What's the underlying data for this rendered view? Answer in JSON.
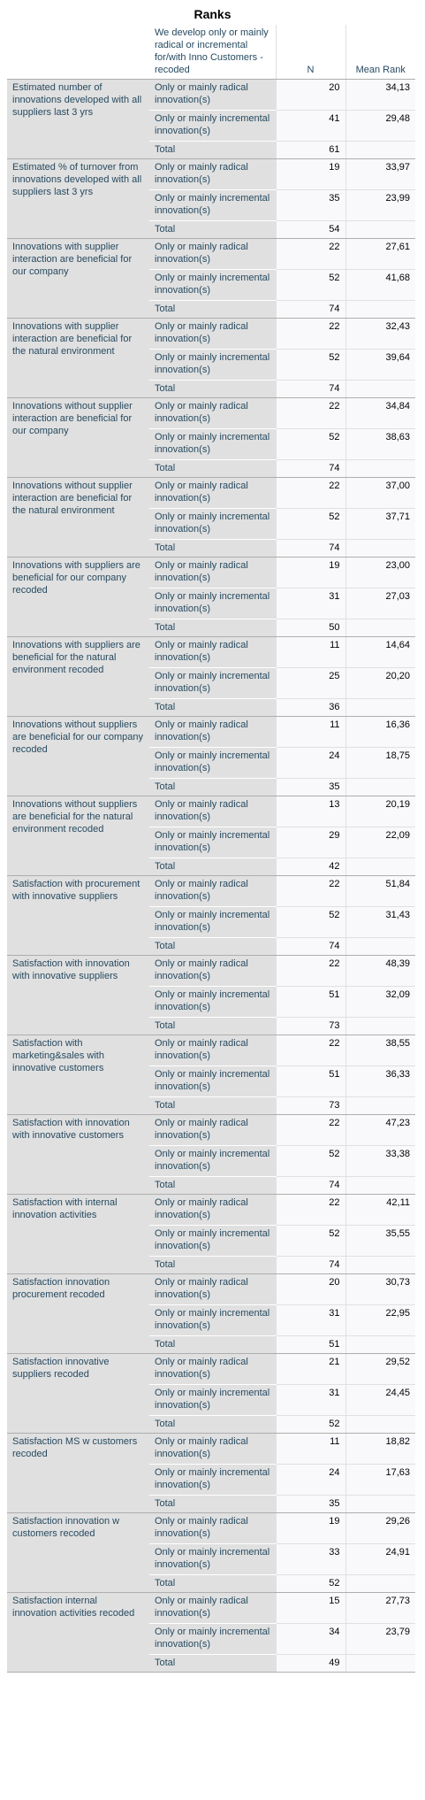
{
  "title": "Ranks",
  "header": {
    "group_var": "We develop only or mainly radical or incremental for/with Inno Customers - recoded",
    "n": "N",
    "mean_rank": "Mean Rank"
  },
  "group_labels": {
    "radical": "Only or mainly radical innovation(s)",
    "incremental": "Only or mainly incremental innovation(s)",
    "total": "Total"
  },
  "rows": [
    {
      "variable": "Estimated number of innovations developed with all suppliers last 3 yrs",
      "radical_n": "20",
      "radical_mr": "34,13",
      "incremental_n": "41",
      "incremental_mr": "29,48",
      "total_n": "61"
    },
    {
      "variable": "Estimated % of turnover from innovations developed with all suppliers last 3 yrs",
      "radical_n": "19",
      "radical_mr": "33,97",
      "incremental_n": "35",
      "incremental_mr": "23,99",
      "total_n": "54"
    },
    {
      "variable": "Innovations with supplier interaction are beneficial for our company",
      "radical_n": "22",
      "radical_mr": "27,61",
      "incremental_n": "52",
      "incremental_mr": "41,68",
      "total_n": "74"
    },
    {
      "variable": "Innovations with supplier interaction are beneficial for the natural environment",
      "radical_n": "22",
      "radical_mr": "32,43",
      "incremental_n": "52",
      "incremental_mr": "39,64",
      "total_n": "74"
    },
    {
      "variable": "Innovations without supplier interaction are beneficial for our company",
      "radical_n": "22",
      "radical_mr": "34,84",
      "incremental_n": "52",
      "incremental_mr": "38,63",
      "total_n": "74"
    },
    {
      "variable": "Innovations without supplier interaction are beneficial for the natural environment",
      "radical_n": "22",
      "radical_mr": "37,00",
      "incremental_n": "52",
      "incremental_mr": "37,71",
      "total_n": "74"
    },
    {
      "variable": "Innovations with suppliers are beneficial for our company recoded",
      "radical_n": "19",
      "radical_mr": "23,00",
      "incremental_n": "31",
      "incremental_mr": "27,03",
      "total_n": "50"
    },
    {
      "variable": "Innovations with suppliers are beneficial for the natural environment recoded",
      "radical_n": "11",
      "radical_mr": "14,64",
      "incremental_n": "25",
      "incremental_mr": "20,20",
      "total_n": "36"
    },
    {
      "variable": "Innovations without suppliers are beneficial for our company recoded",
      "radical_n": "11",
      "radical_mr": "16,36",
      "incremental_n": "24",
      "incremental_mr": "18,75",
      "total_n": "35"
    },
    {
      "variable": "Innovations without suppliers are beneficial for the natural environment recoded",
      "radical_n": "13",
      "radical_mr": "20,19",
      "incremental_n": "29",
      "incremental_mr": "22,09",
      "total_n": "42"
    },
    {
      "variable": "Satisfaction with procurement with innovative suppliers",
      "radical_n": "22",
      "radical_mr": "51,84",
      "incremental_n": "52",
      "incremental_mr": "31,43",
      "total_n": "74"
    },
    {
      "variable": "Satisfaction with innovation with innovative suppliers",
      "radical_n": "22",
      "radical_mr": "48,39",
      "incremental_n": "51",
      "incremental_mr": "32,09",
      "total_n": "73"
    },
    {
      "variable": "Satisfaction with marketing&sales with innovative customers",
      "radical_n": "22",
      "radical_mr": "38,55",
      "incremental_n": "51",
      "incremental_mr": "36,33",
      "total_n": "73"
    },
    {
      "variable": "Satisfaction with innovation with innovative customers",
      "radical_n": "22",
      "radical_mr": "47,23",
      "incremental_n": "52",
      "incremental_mr": "33,38",
      "total_n": "74"
    },
    {
      "variable": "Satisfaction with internal innovation activities",
      "radical_n": "22",
      "radical_mr": "42,11",
      "incremental_n": "52",
      "incremental_mr": "35,55",
      "total_n": "74"
    },
    {
      "variable": "Satisfaction innovation procurement recoded",
      "radical_n": "20",
      "radical_mr": "30,73",
      "incremental_n": "31",
      "incremental_mr": "22,95",
      "total_n": "51"
    },
    {
      "variable": "Satisfaction innovative suppliers recoded",
      "radical_n": "21",
      "radical_mr": "29,52",
      "incremental_n": "31",
      "incremental_mr": "24,45",
      "total_n": "52"
    },
    {
      "variable": "Satisfaction MS w customers recoded",
      "radical_n": "11",
      "radical_mr": "18,82",
      "incremental_n": "24",
      "incremental_mr": "17,63",
      "total_n": "35"
    },
    {
      "variable": "Satisfaction innovation w customers recoded",
      "radical_n": "19",
      "radical_mr": "29,26",
      "incremental_n": "33",
      "incremental_mr": "24,91",
      "total_n": "52"
    },
    {
      "variable": "Satisfaction internal innovation activities recoded",
      "radical_n": "15",
      "radical_mr": "27,73",
      "incremental_n": "34",
      "incremental_mr": "23,79",
      "total_n": "49"
    }
  ]
}
